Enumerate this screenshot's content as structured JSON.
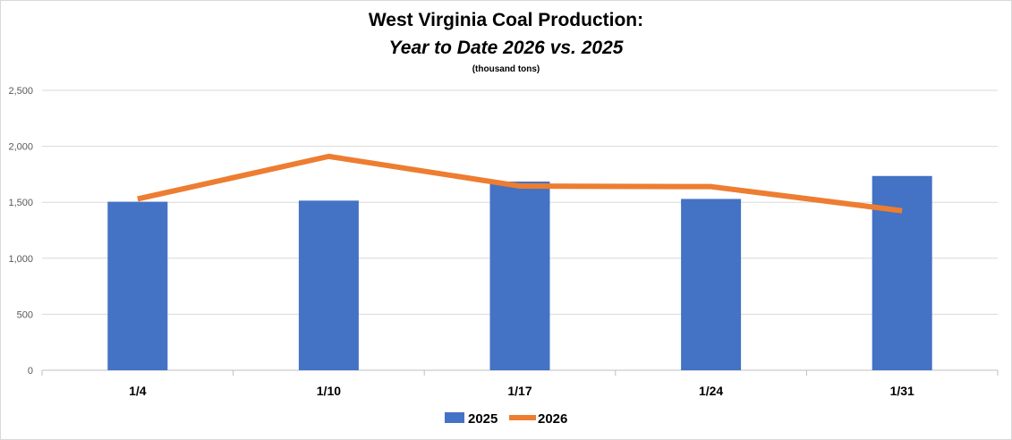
{
  "chart_data": {
    "type": "bar",
    "title": "West Virginia Coal Production:",
    "subtitle": "Year to Date 2026 vs. 2025",
    "units_note": "(thousand tons)",
    "categories": [
      "1/4",
      "1/10",
      "1/17",
      "1/24",
      "1/31"
    ],
    "series": [
      {
        "name": "2025",
        "type": "bar",
        "color": "#4472c4",
        "values": [
          1505,
          1515,
          1685,
          1530,
          1735
        ]
      },
      {
        "name": "2026",
        "type": "line",
        "color": "#ed7d31",
        "values": [
          1530,
          1910,
          1645,
          1640,
          1425
        ]
      }
    ],
    "y_ticks": [
      "0",
      "500",
      "1,000",
      "1,500",
      "2,000",
      "2,500"
    ],
    "ylim": [
      0,
      2500
    ],
    "grid": true,
    "legend_position": "bottom"
  }
}
